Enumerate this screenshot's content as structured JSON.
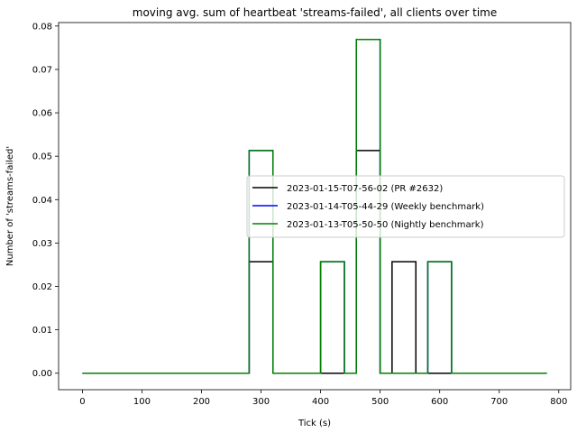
{
  "chart_data": {
    "type": "line",
    "step": "post",
    "title": "moving avg. sum of heartbeat 'streams-failed', all clients over time",
    "xlabel": "Tick (s)",
    "ylabel": "Number of 'streams-failed'",
    "xlim": [
      -40,
      820
    ],
    "ylim": [
      -0.0038,
      0.0808
    ],
    "xticks": [
      0,
      100,
      200,
      300,
      400,
      500,
      600,
      700,
      800
    ],
    "yticks": [
      0.0,
      0.01,
      0.02,
      0.03,
      0.04,
      0.05,
      0.06,
      0.07,
      0.08
    ],
    "ytick_labels": [
      "0.00",
      "0.01",
      "0.02",
      "0.03",
      "0.04",
      "0.05",
      "0.06",
      "0.07",
      "0.08"
    ],
    "grid": false,
    "legend_position": "center-right",
    "series": [
      {
        "name": "2023-01-15-T07-56-02 (PR #2632)",
        "color": "#000000",
        "x": [
          0,
          280,
          320,
          460,
          500,
          520,
          560,
          780
        ],
        "y": [
          0,
          0.0257,
          0,
          0.0513,
          0,
          0.0257,
          0,
          0
        ]
      },
      {
        "name": "2023-01-14-T05-44-29 (Weekly benchmark)",
        "color": "#0000ff",
        "x": [
          0,
          280,
          320,
          400,
          440,
          460,
          500,
          580,
          620,
          780
        ],
        "y": [
          0,
          0.0513,
          0,
          0.0257,
          0,
          0.0769,
          0,
          0.0257,
          0,
          0
        ]
      },
      {
        "name": "2023-01-13-T05-50-50 (Nightly benchmark)",
        "color": "#008000",
        "x": [
          0,
          280,
          320,
          400,
          440,
          460,
          500,
          580,
          620,
          780
        ],
        "y": [
          0,
          0.0513,
          0,
          0.0257,
          0,
          0.0769,
          0,
          0.0257,
          0,
          0
        ]
      }
    ]
  }
}
